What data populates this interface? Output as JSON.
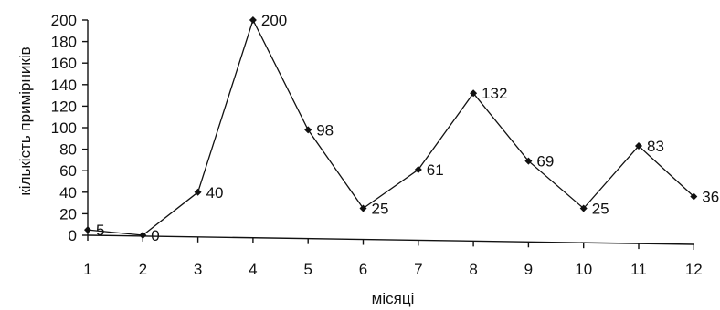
{
  "chart_data": {
    "type": "line",
    "xlabel": "місяці",
    "ylabel": "кількість примірників",
    "ylim": [
      0,
      200
    ],
    "yticks": [
      0,
      20,
      40,
      60,
      80,
      100,
      120,
      140,
      160,
      180,
      200
    ],
    "grid": false,
    "legend": "none",
    "line_color": "#111111",
    "categories": [
      "1",
      "2",
      "3",
      "4",
      "5",
      "6",
      "7",
      "8",
      "9",
      "10",
      "11",
      "12"
    ],
    "series": [
      {
        "values": [
          5,
          0,
          40,
          200,
          98,
          25,
          61,
          132,
          69,
          25,
          83,
          36
        ],
        "labels": [
          "5",
          "0",
          "40",
          "200",
          "98",
          "25",
          "61",
          "132",
          "69",
          "25",
          "83",
          "36"
        ]
      }
    ]
  }
}
